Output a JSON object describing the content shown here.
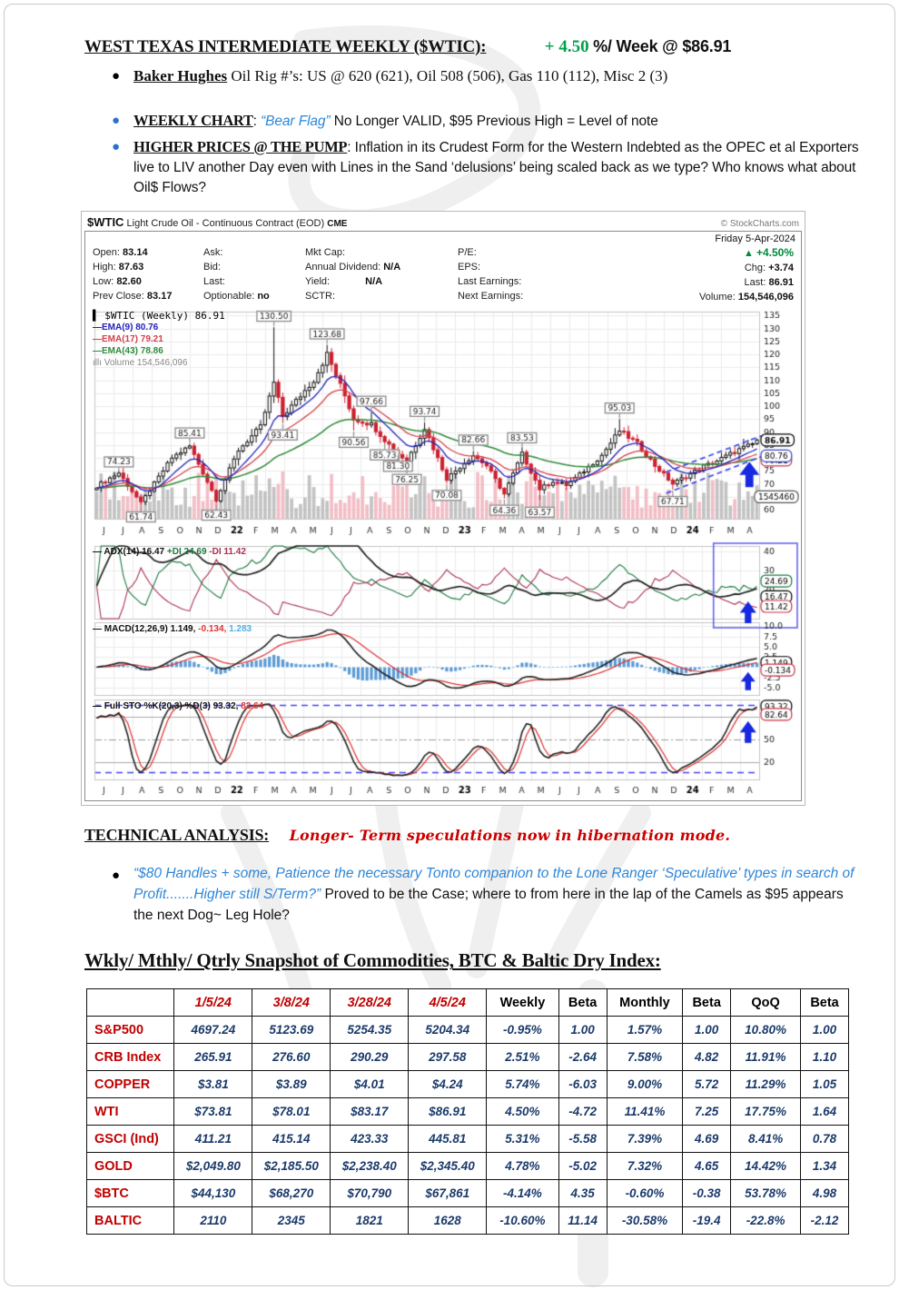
{
  "page_title": {
    "heading": "WEST TEXAS INTERMEDIATE WEEKLY ($WTIC):",
    "change": "+ 4.50",
    "change_suffix": " %/ Week @ $86.91"
  },
  "bullets": {
    "baker_label": "Baker Hughes",
    "baker_text": " Oil Rig #’s: US @ 620 (621), Oil 508 (506), Gas 110 (112), Misc 2 (3)",
    "weekly_label": "WEEKLY CHART",
    "weekly_colon": ": ",
    "weekly_quote": "“Bear Flag”",
    "weekly_text": " No Longer VALID, $95 Previous High = Level of note",
    "pump_label": "HIGHER PRICES @ THE PUMP",
    "pump_text": ": Inflation in its Crudest Form for the Western Indebted as the OPEC et al Exporters live to LIV another Day even with Lines in the Sand ‘delusions’ being scaled back as we type? Who knows what about Oil$ Flows?"
  },
  "chart": {
    "symbol": "$WTIC",
    "desc": " Light Crude Oil - Continuous Contract (EOD) ",
    "exchange": "CME",
    "credit": "© StockCharts.com",
    "date": "Friday 5-Apr-2024",
    "info": {
      "open_label": "Open:",
      "open": "83.14",
      "high_label": "High:",
      "high": "87.63",
      "low_label": "Low:",
      "low": "82.60",
      "prev_label": "Prev Close:",
      "prev": "83.17",
      "ask_label": "Ask:",
      "bid_label": "Bid:",
      "last_label": "Last:",
      "opt_label": "Optionable:",
      "opt": "no",
      "mktcap_label": "Mkt Cap:",
      "div_label": "Annual Dividend:",
      "div": "N/A",
      "yield_label": "Yield:",
      "yield": "N/A",
      "sctr_label": "SCTR:",
      "pe_label": "P/E:",
      "eps_label": "EPS:",
      "lastearn_label": "Last Earnings:",
      "nextearn_label": "Next Earnings:",
      "up_triangle": "▲",
      "pct": "+4.50%",
      "chg_label": "Chg:",
      "chg": "+3.74",
      "last2_label": "Last:",
      "last2": "86.91",
      "vol_label": "Volume:",
      "vol": "154,546,096"
    },
    "legend": {
      "icon": "▌",
      "title": "$WTIC (Weekly) 86.91",
      "ema9": "—EMA(9) 80.76",
      "ema17": "—EMA(17) 79.21",
      "ema43": "—EMA(43) 78.86",
      "volume": "ıllı Volume 154,546,096"
    },
    "adx_legend": {
      "a": "— ADX(14) 16.47 ",
      "b": "+DI 24.69 ",
      "c": "-DI 11.42"
    },
    "macd_legend": {
      "a": "— MACD(12,26,9) 1.149, ",
      "b": "-0.134, ",
      "c": "1.283"
    },
    "sto_legend": {
      "a": "— Full STO %K(20,3) %D(3) 93.32, ",
      "b": "82.64"
    }
  },
  "technical": {
    "heading": "TECHNICAL ANALYSIS:",
    "note": "Longer- Term speculations now in hibernation mode.",
    "quote": "“$80 Handles + some, Patience the necessary Tonto companion to the Lone Ranger ‘Speculative’ types in search of Profit.......Higher still S/Term?”",
    "rest": " Proved to be the Case; where to from here in the lap of the Camels as $95 appears the next Dog~ Leg Hole?"
  },
  "snapshot": {
    "heading": "Wkly/ Mthly/ Qtrly Snapshot of Commodities, BTC & Baltic Dry Index:",
    "columns": [
      "",
      "1/5/24",
      "3/8/24",
      "3/28/24",
      "4/5/24",
      "Weekly",
      "Beta",
      "Monthly",
      "Beta",
      "QoQ",
      "Beta"
    ],
    "rows": [
      {
        "label": "S&P500",
        "values": [
          "4697.24",
          "5123.69",
          "5254.35",
          "5204.34",
          "-0.95%",
          "1.00",
          "1.57%",
          "1.00",
          "10.80%",
          "1.00"
        ]
      },
      {
        "label": "CRB Index",
        "values": [
          "265.91",
          "276.60",
          "290.29",
          "297.58",
          "2.51%",
          "-2.64",
          "7.58%",
          "4.82",
          "11.91%",
          "1.10"
        ]
      },
      {
        "label": "COPPER",
        "values": [
          "$3.81",
          "$3.89",
          "$4.01",
          "$4.24",
          "5.74%",
          "-6.03",
          "9.00%",
          "5.72",
          "11.29%",
          "1.05"
        ]
      },
      {
        "label": "WTI",
        "values": [
          "$73.81",
          "$78.01",
          "$83.17",
          "$86.91",
          "4.50%",
          "-4.72",
          "11.41%",
          "7.25",
          "17.75%",
          "1.64"
        ]
      },
      {
        "label": "GSCI (Ind)",
        "values": [
          "411.21",
          "415.14",
          "423.33",
          "445.81",
          "5.31%",
          "-5.58",
          "7.39%",
          "4.69",
          "8.41%",
          "0.78"
        ]
      },
      {
        "label": "GOLD",
        "values": [
          "$2,049.80",
          "$2,185.50",
          "$2,238.40",
          "$2,345.40",
          "4.78%",
          "-5.02",
          "7.32%",
          "4.65",
          "14.42%",
          "1.34"
        ]
      },
      {
        "label": "$BTC",
        "values": [
          "$44,130",
          "$68,270",
          "$70,790",
          "$67,861",
          "-4.14%",
          "4.35",
          "-0.60%",
          "-0.38",
          "53.78%",
          "4.98"
        ]
      },
      {
        "label": "BALTIC",
        "values": [
          "2110",
          "2345",
          "1821",
          "1628",
          "-10.60%",
          "11.14",
          "-30.58%",
          "-19.4",
          "-22.8%",
          "-2.12"
        ]
      }
    ]
  },
  "chart_data": {
    "type": "candlestick",
    "title": "$WTIC Light Crude Oil - Continuous Contract (EOD) Weekly",
    "weeks": 150,
    "months": [
      "J",
      "J",
      "A",
      "S",
      "O",
      "N",
      "D",
      "22",
      "F",
      "M",
      "A",
      "M",
      "J",
      "J",
      "A",
      "S",
      "O",
      "N",
      "D",
      "23",
      "F",
      "M",
      "A",
      "M",
      "J",
      "J",
      "A",
      "S",
      "O",
      "N",
      "D",
      "24",
      "F",
      "M",
      "A"
    ],
    "price_ticks": [
      135,
      130,
      125,
      120,
      115,
      110,
      105,
      100,
      95,
      90,
      85,
      80,
      75,
      70,
      65,
      60
    ],
    "price_range": [
      56.5,
      136.5
    ],
    "close_anchors": [
      [
        0,
        69
      ],
      [
        5,
        74.2
      ],
      [
        10,
        62.5
      ],
      [
        17,
        80
      ],
      [
        21,
        84.5
      ],
      [
        27,
        64
      ],
      [
        32,
        83
      ],
      [
        37,
        92
      ],
      [
        40,
        109
      ],
      [
        42,
        96
      ],
      [
        45,
        102
      ],
      [
        49,
        110
      ],
      [
        52,
        120
      ],
      [
        56,
        104
      ],
      [
        58,
        95
      ],
      [
        62,
        93
      ],
      [
        65,
        87
      ],
      [
        68,
        81.5
      ],
      [
        70,
        79
      ],
      [
        74,
        91.5
      ],
      [
        79,
        72
      ],
      [
        85,
        81
      ],
      [
        88,
        77
      ],
      [
        92,
        66
      ],
      [
        96,
        81.5
      ],
      [
        100,
        68
      ],
      [
        103,
        71
      ],
      [
        106,
        69.5
      ],
      [
        109,
        73.5
      ],
      [
        114,
        81
      ],
      [
        118,
        90.5
      ],
      [
        122,
        85.5
      ],
      [
        126,
        77
      ],
      [
        130,
        70
      ],
      [
        134,
        73.8
      ],
      [
        137,
        76.8
      ],
      [
        139,
        78
      ],
      [
        143,
        81.5
      ],
      [
        145,
        83.2
      ],
      [
        148,
        85.3
      ],
      [
        149,
        86.91
      ]
    ],
    "annotations": [
      [
        5,
        "74.23",
        "a"
      ],
      [
        10,
        "61.74",
        "b"
      ],
      [
        21,
        "85.41",
        "a"
      ],
      [
        27,
        "62.43",
        "b"
      ],
      [
        40,
        "130.50",
        "a"
      ],
      [
        42,
        "93.41",
        "b"
      ],
      [
        52,
        "123.68",
        "a"
      ],
      [
        58,
        "90.56",
        "b"
      ],
      [
        62,
        "97.66",
        "a"
      ],
      [
        65,
        "85.73",
        "b"
      ],
      [
        68,
        "81.30",
        "b"
      ],
      [
        70,
        "76.25",
        "b"
      ],
      [
        74,
        "93.74",
        "a"
      ],
      [
        79,
        "70.08",
        "b"
      ],
      [
        85,
        "82.66",
        "a"
      ],
      [
        92,
        "64.36",
        "b"
      ],
      [
        96,
        "83.53",
        "a"
      ],
      [
        100,
        "63.57",
        "b"
      ],
      [
        118,
        "95.03",
        "a"
      ],
      [
        130,
        "67.71",
        "b"
      ]
    ],
    "last_labels": {
      "price": "86.91",
      "ema9": "80.76",
      "ema17": "79.21",
      "volume": "1545460",
      "adx": [
        "24.69",
        "16.47",
        "11.42"
      ],
      "macd": [
        "1.149",
        "-0.134"
      ],
      "sto": [
        "93.32",
        "82.64"
      ]
    },
    "indicators": {
      "adx": {
        "label": "ADX(14)",
        "value": 16.47,
        "plus_di": 24.69,
        "minus_di": 11.42,
        "ticks": [
          40,
          30,
          20
        ]
      },
      "macd": {
        "label": "MACD(12,26,9)",
        "line": 1.149,
        "hist": -0.134,
        "signal": 1.283,
        "ticks": [
          10.0,
          7.5,
          5.0,
          2.5,
          -2.5,
          -5.0
        ]
      },
      "sto": {
        "label": "Full STO %K(20,3) %D(3)",
        "k": 93.32,
        "d": 82.64,
        "ticks": [
          80,
          50,
          20
        ],
        "overbought_dash": 95,
        "oversold_dash": 8
      }
    },
    "flag_channel": [
      [
        128.5,
        66.3,
        150,
        80.5
      ],
      [
        128.5,
        74.5,
        150,
        88.5
      ]
    ],
    "colors": {
      "up": "#ffffff",
      "down": "#cc2030",
      "ema9": "#2222bb",
      "ema17": "#d4414e",
      "ema43": "#2e8b3a",
      "vol_up": "#bcbcbc",
      "vol_down": "#f2b7c0",
      "hist": "#5b9bd5",
      "arrow": "#1629e0",
      "highlight_box": "#6666ee",
      "plus_di": "#1a7a40",
      "minus_di": "#aa3352",
      "signal": "#e03030"
    }
  }
}
